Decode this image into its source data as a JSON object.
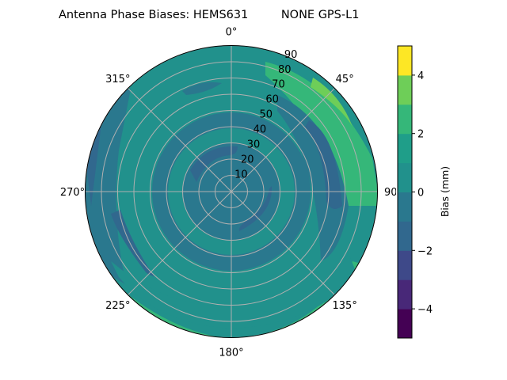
{
  "chart_data": {
    "type": "polar-contour",
    "title": "Antenna Phase Biases: HEMS631         NONE GPS-L1",
    "theta_ticks": [
      "0°",
      "45°",
      "90°",
      "135°",
      "180°",
      "225°",
      "270°",
      "315°"
    ],
    "theta_direction": "clockwise",
    "theta_zero": "top",
    "r_ticks": [
      "10",
      "20",
      "30",
      "40",
      "50",
      "60",
      "70",
      "80",
      "90"
    ],
    "r_range": [
      0,
      90
    ],
    "grid": true,
    "colorbar": {
      "label": "Bias (mm)",
      "levels": [
        -5,
        -4,
        -3,
        -2,
        -1,
        0,
        1,
        2,
        3,
        4,
        5
      ],
      "ticks": [
        "−4",
        "−2",
        "0",
        "2",
        "4"
      ],
      "tick_values": [
        -4,
        -2,
        0,
        2,
        4
      ],
      "colors": [
        "#440154",
        "#482878",
        "#3e4989",
        "#31688e",
        "#2a788e",
        "#21918c",
        "#1f9e89",
        "#35b779",
        "#6ece58",
        "#b5de2b",
        "#fde725"
      ],
      "placement": "right"
    },
    "observed_range": [
      -2,
      3
    ]
  }
}
